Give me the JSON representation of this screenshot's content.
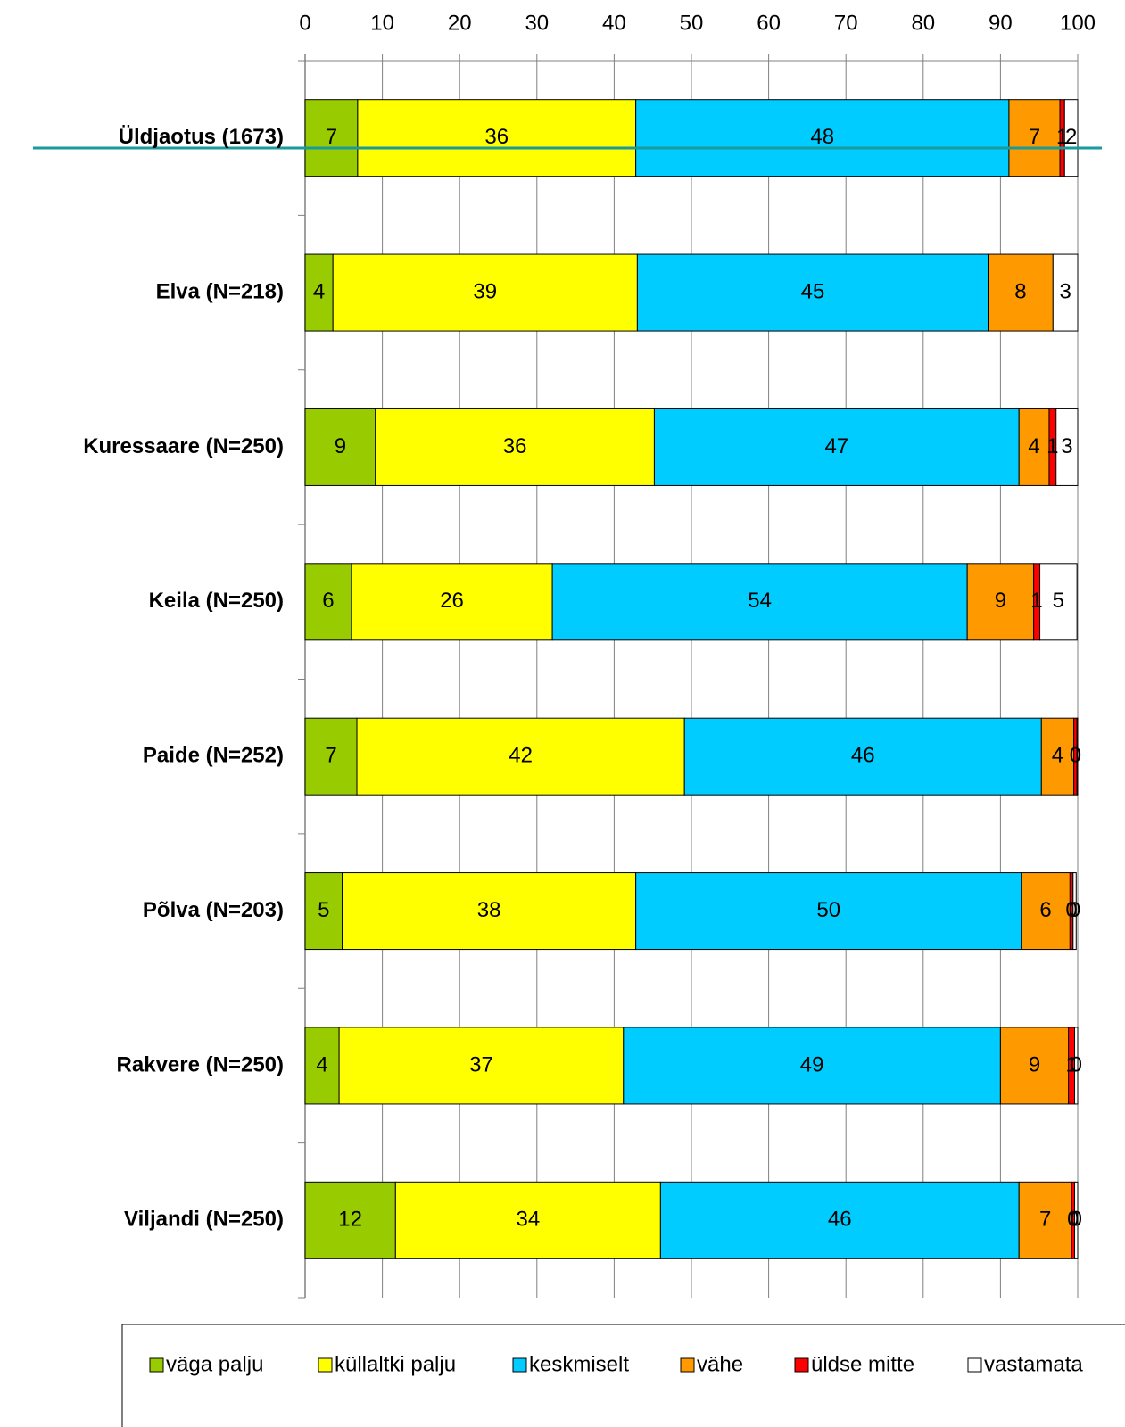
{
  "chart_data": {
    "type": "stacked-bar-horizontal",
    "categories": [
      "Üldjaotus (1673)",
      "Elva (N=218)",
      "Kuressaare (N=250)",
      "Keila (N=250)",
      "Paide (N=252)",
      "Põlva (N=203)",
      "Rakvere (N=250)",
      "Viljandi (N=250)"
    ],
    "xlim": [
      0,
      100
    ],
    "xticks": [
      0,
      10,
      20,
      30,
      40,
      50,
      60,
      70,
      80,
      90,
      100
    ],
    "grid": true,
    "legend": "bottom",
    "series": [
      {
        "name": "väga palju",
        "color": "#99cc00",
        "values": [
          6.8,
          3.6,
          9.1,
          6.0,
          6.7,
          4.8,
          4.4,
          11.7
        ],
        "value_labels": [
          "7",
          "4",
          "9",
          "6",
          "7",
          "5",
          "4",
          "12"
        ]
      },
      {
        "name": "küllaltki palju",
        "color": "#ffff00",
        "values": [
          36.0,
          39.4,
          36.1,
          26.0,
          42.4,
          38.0,
          36.8,
          34.3
        ],
        "value_labels": [
          "36",
          "39",
          "36",
          "26",
          "42",
          "38",
          "37",
          "34"
        ]
      },
      {
        "name": "keskmiselt",
        "color": "#00ccff",
        "values": [
          48.3,
          45.4,
          47.2,
          53.7,
          46.2,
          49.9,
          48.8,
          46.4
        ],
        "value_labels": [
          "48",
          "45",
          "47",
          "54",
          "46",
          "50",
          "49",
          "46"
        ]
      },
      {
        "name": "vähe",
        "color": "#ff9900",
        "values": [
          6.6,
          8.4,
          3.9,
          8.6,
          4.2,
          6.3,
          8.8,
          6.8
        ],
        "value_labels": [
          "7",
          "8",
          "4",
          "9",
          "4",
          "6",
          "9",
          "7"
        ]
      },
      {
        "name": "üldse mitte",
        "color": "#ff0000",
        "values": [
          0.6,
          0,
          0.9,
          0.8,
          0.4,
          0.4,
          0.8,
          0.4
        ],
        "value_labels": [
          "1",
          null,
          "1",
          "1",
          "0",
          "0",
          "1",
          "0"
        ]
      },
      {
        "name": "vastamata",
        "color": "#ffffff",
        "values": [
          1.7,
          3.2,
          2.8,
          4.8,
          0.1,
          0.4,
          0.4,
          0.4
        ],
        "value_labels": [
          "2",
          "3",
          "3",
          "5",
          null,
          "0",
          "0",
          "0"
        ]
      }
    ]
  }
}
